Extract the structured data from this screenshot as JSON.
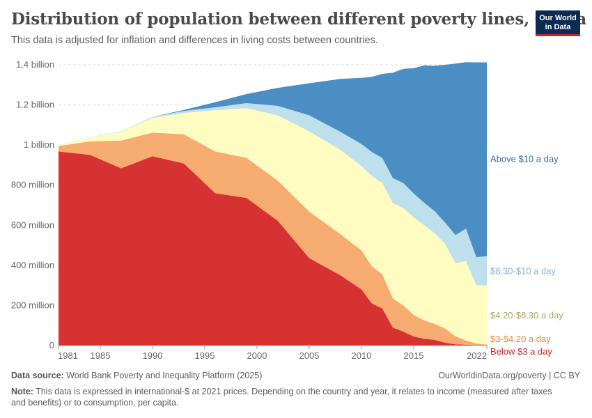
{
  "header": {
    "title": "Distribution of population between different poverty lines, China",
    "subtitle": "This data is adjusted for inflation and differences in living costs between countries."
  },
  "logo": {
    "line1": "Our World",
    "line2": "in Data"
  },
  "footer": {
    "source_label": "Data source:",
    "source_text": "World Bank Poverty and Inequality Platform (2025)",
    "license": "OurWorldinData.org/poverty | CC BY",
    "note_label": "Note:",
    "note_text": "This data is expressed in international-$ at 2021 prices. Depending on the country and year, it relates to income (measured after taxes and benefits) or to consumption, per capita."
  },
  "colors": {
    "below3": "#d73232",
    "b3to4": "#f6ab70",
    "b4to8": "#fffcc2",
    "b8to10": "#bde0ec",
    "above10": "#4b8ec4"
  },
  "chart_data": {
    "type": "area",
    "stacked": true,
    "ylim": [
      0,
      1400000000
    ],
    "xlim": [
      1981,
      2022
    ],
    "y_ticks": [
      {
        "value": 0,
        "label": "0"
      },
      {
        "value": 200000000,
        "label": "200 million"
      },
      {
        "value": 400000000,
        "label": "400 million"
      },
      {
        "value": 600000000,
        "label": "600 million"
      },
      {
        "value": 800000000,
        "label": "800 million"
      },
      {
        "value": 1000000000,
        "label": "1 billion"
      },
      {
        "value": 1200000000,
        "label": "1.2 billion"
      },
      {
        "value": 1400000000,
        "label": "1.4 billion"
      }
    ],
    "x_ticks": [
      1981,
      1985,
      1990,
      1995,
      2000,
      2005,
      2010,
      2015,
      2022
    ],
    "grid": true,
    "x": [
      1981,
      1984,
      1987,
      1990,
      1993,
      1996,
      1999,
      2002,
      2005,
      2008,
      2010,
      2011,
      2012,
      2013,
      2014,
      2015,
      2016,
      2017,
      2018,
      2019,
      2020,
      2021,
      2022
    ],
    "series": [
      {
        "name": "Below $3 a day",
        "color_key": "below3",
        "values": [
          968000000,
          951000000,
          884000000,
          944000000,
          908000000,
          760000000,
          736000000,
          622000000,
          436000000,
          350000000,
          280000000,
          210000000,
          185000000,
          90000000,
          70000000,
          45000000,
          34000000,
          28000000,
          15000000,
          6000000,
          4000000,
          2000000,
          1000000
        ]
      },
      {
        "name": "$3-$4.20 a day",
        "color_key": "b3to4",
        "values": [
          27000000,
          67000000,
          138000000,
          118000000,
          145000000,
          208000000,
          200000000,
          200000000,
          232000000,
          205000000,
          195000000,
          185000000,
          170000000,
          145000000,
          130000000,
          108000000,
          92000000,
          80000000,
          70000000,
          40000000,
          21000000,
          8000000,
          4000000
        ]
      },
      {
        "name": "$4.20-$8.30 a day",
        "color_key": "b4to8",
        "values": [
          5000000,
          20000000,
          45000000,
          73000000,
          107000000,
          205000000,
          248000000,
          325000000,
          400000000,
          420000000,
          420000000,
          450000000,
          455000000,
          475000000,
          485000000,
          487000000,
          474000000,
          452000000,
          422000000,
          365000000,
          396000000,
          290000000,
          296000000
        ]
      },
      {
        "name": "$8.30-$10 a day",
        "color_key": "b8to10",
        "values": [
          0,
          1000000,
          2000000,
          5000000,
          10000000,
          15000000,
          25000000,
          48000000,
          80000000,
          90000000,
          110000000,
          120000000,
          125000000,
          125000000,
          125000000,
          118000000,
          112000000,
          110000000,
          106000000,
          140000000,
          162000000,
          140000000,
          145000000
        ]
      },
      {
        "name": "Above $10 a day",
        "color_key": "above10",
        "values": [
          0,
          0,
          0,
          0,
          5000000,
          25000000,
          45000000,
          90000000,
          160000000,
          265000000,
          330000000,
          375000000,
          420000000,
          525000000,
          570000000,
          625000000,
          685000000,
          725000000,
          787000000,
          855000000,
          830000000,
          972000000,
          966000000
        ]
      }
    ],
    "series_label_values": {
      "Above $10 a day": 930000000,
      "$8.30-$10 a day": 370000000,
      "$4.20-$8.30 a day": 150000000,
      "$3-$4.20 a day": 3000000,
      "Below $3 a day": 1000000
    }
  }
}
